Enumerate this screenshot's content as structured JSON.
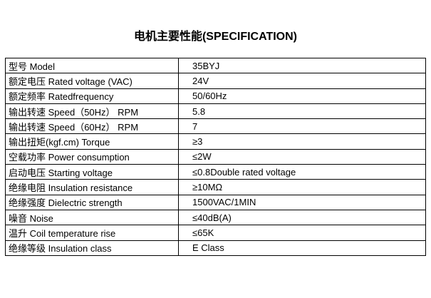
{
  "title": "电机主要性能(SPECIFICATION)",
  "colors": {
    "background": "#ffffff",
    "border": "#000000",
    "text": "#000000"
  },
  "table": {
    "rows": [
      {
        "label": "型号 Model",
        "value": "35BYJ"
      },
      {
        "label": "额定电压 Rated voltage (VAC)",
        "value": "24V"
      },
      {
        "label": "额定频率 Ratedfrequency",
        "value": "50/60Hz"
      },
      {
        "label": "输出转速 Speed（50Hz） RPM",
        "value": "5.8"
      },
      {
        "label": "输出转速 Speed（60Hz） RPM",
        "value": "7"
      },
      {
        "label": "输出扭矩(kgf.cm) Torque",
        "value": "≥3"
      },
      {
        "label": "空载功率 Power consumption",
        "value": "≤2W"
      },
      {
        "label": "启动电压 Starting voltage",
        "value": "≤0.8Double rated voltage"
      },
      {
        "label": "绝缘电阻 Insulation resistance",
        "value": "≥10MΩ"
      },
      {
        "label": "绝缘强度 Dielectric strength",
        "value": "1500VAC/1MIN"
      },
      {
        "label": "噪音 Noise",
        "value": "≤40dB(A)"
      },
      {
        "label": "温升 Coil temperature rise",
        "value": "≤65K"
      },
      {
        "label": "绝缘等级 Insulation class",
        "value": "E Class"
      }
    ]
  }
}
